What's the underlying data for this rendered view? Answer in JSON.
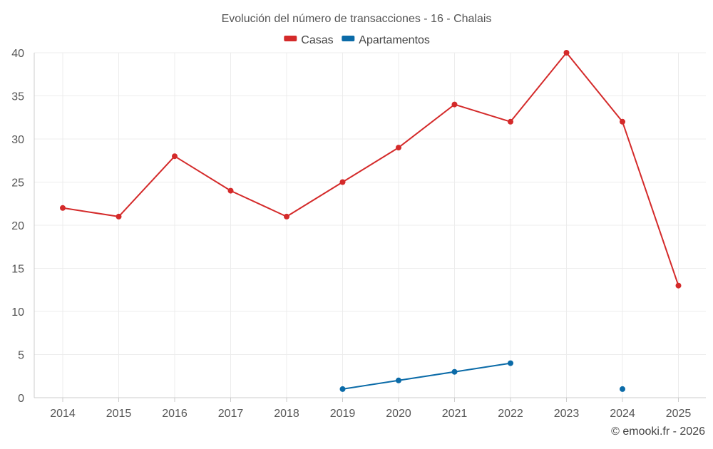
{
  "chart_data": {
    "type": "line",
    "title": "Evolución del número de transacciones - 16 - Chalais",
    "xlabel": "",
    "ylabel": "",
    "categories": [
      "2014",
      "2015",
      "2016",
      "2017",
      "2018",
      "2019",
      "2020",
      "2021",
      "2022",
      "2023",
      "2024",
      "2025"
    ],
    "ylim": [
      0,
      40
    ],
    "yticks": [
      "0",
      "5",
      "10",
      "15",
      "20",
      "25",
      "30",
      "35",
      "40"
    ],
    "grid": true,
    "legend_position": "top-center",
    "series": [
      {
        "name": "Casas",
        "color": "#d42a2a",
        "values": [
          22,
          21,
          28,
          24,
          21,
          25,
          29,
          34,
          32,
          40,
          32,
          13
        ]
      },
      {
        "name": "Apartamentos",
        "color": "#0b6ba8",
        "values": [
          null,
          null,
          null,
          null,
          null,
          1,
          2,
          3,
          4,
          null,
          1,
          null
        ]
      }
    ],
    "credit": "© emooki.fr - 2026"
  }
}
